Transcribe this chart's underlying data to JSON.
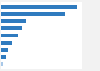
{
  "values": [
    26370,
    22281,
    8530,
    7216,
    5705,
    3952,
    2442,
    1762,
    620
  ],
  "bar_colors": [
    "#2f7bbf",
    "#2f7bbf",
    "#2f7bbf",
    "#2f7bbf",
    "#2f7bbf",
    "#2f7bbf",
    "#2f7bbf",
    "#2f7bbf",
    "#a8c8e8"
  ],
  "background_color": "#f2f2f2",
  "plot_background": "#ffffff",
  "xlim": [
    0,
    28000
  ],
  "bar_height": 0.55,
  "grid_color": "#dddddd"
}
